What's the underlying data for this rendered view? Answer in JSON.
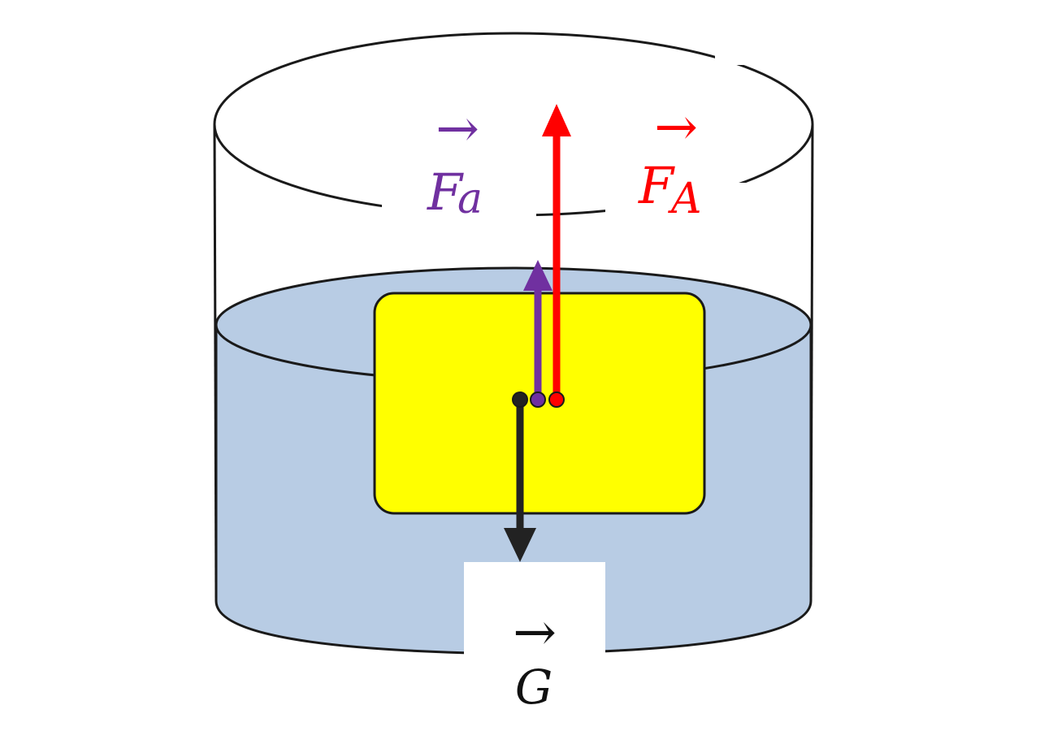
{
  "colors": {
    "background": "#ffffff",
    "water": "#b8cce4",
    "block": "#ffff00",
    "outline": "#1a1a1a",
    "fa_purple": "#7030a0",
    "fA_red": "#ff0000",
    "g_black": "#222222"
  },
  "labels": {
    "fa": {
      "main": "F",
      "sub": "a",
      "arrow": "→"
    },
    "fA": {
      "main": "F",
      "sub": "A",
      "arrow": "→"
    },
    "g": {
      "main": "G",
      "arrow": "→"
    }
  }
}
